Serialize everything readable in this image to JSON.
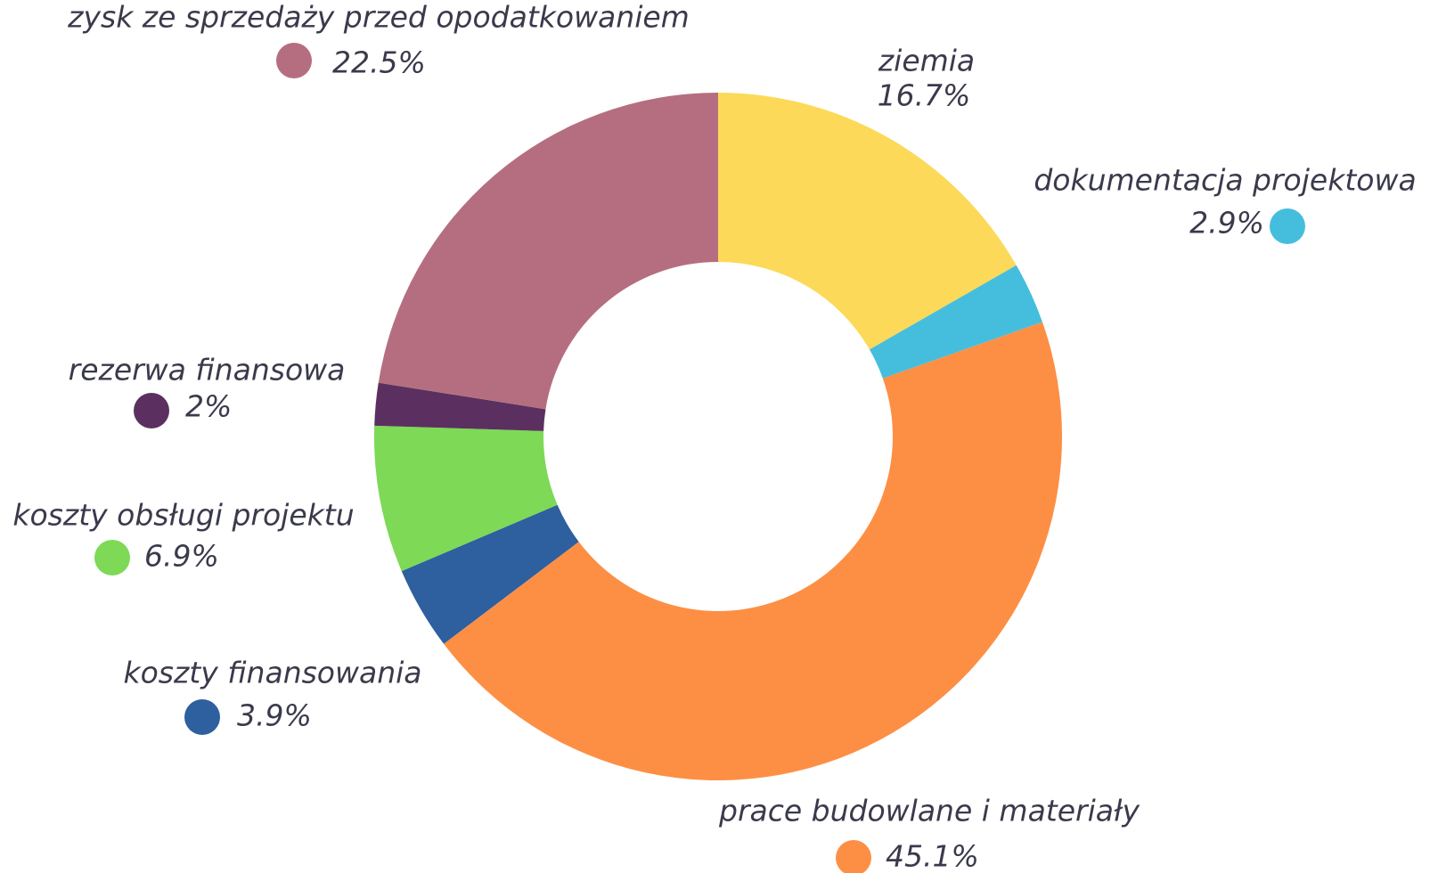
{
  "chart_data": {
    "type": "donut",
    "categories": [
      "ziemia",
      "dokumentacja projektowa",
      "prace budowlane i materiały",
      "koszty finansowania",
      "koszty obsługi projektu",
      "rezerwa finansowa",
      "zysk ze sprzedaży przed opodatkowaniem"
    ],
    "values": [
      16.7,
      2.9,
      45.1,
      3.9,
      6.9,
      2,
      22.5
    ],
    "value_labels": [
      "16.7%",
      "2.9%",
      "45.1%",
      "3.9%",
      "6.9%",
      "2%",
      "22.5%"
    ],
    "colors": [
      "#fcd958",
      "#45bedd",
      "#fd8f45",
      "#2e5f9e",
      "#7dd956",
      "#5b3060",
      "#b56e80"
    ]
  }
}
